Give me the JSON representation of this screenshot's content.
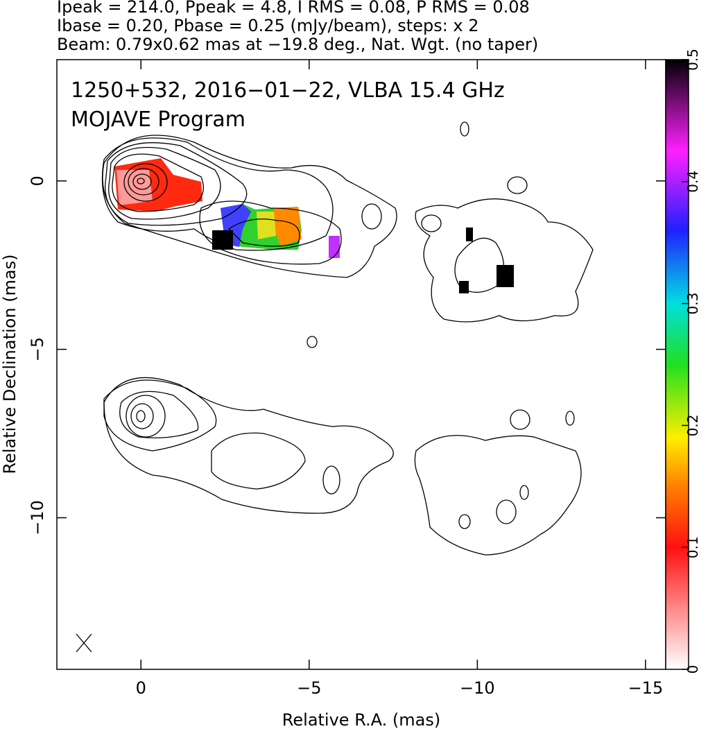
{
  "header": {
    "lines": [
      "Ipeak = 214.0, Ppeak = 4.8, I RMS = 0.08, P RMS = 0.08",
      "Ibase = 0.20, Pbase = 0.25 (mJy/beam), steps: x 2",
      "Beam: 0.79x0.62 mas at −19.8 deg., Nat. Wgt. (no taper)"
    ]
  },
  "chart_data": {
    "type": "map",
    "annotations": [
      "1250+532, 2016−01−22, VLBA 15.4 GHz",
      "MOJAVE Program"
    ],
    "x_label": "Relative R.A. (mas)",
    "y_label": "Relative Declination (mas)",
    "xlim": [
      2.5,
      -15.6
    ],
    "xticks": [
      0,
      {
        "value": -5,
        "label": "−5"
      },
      {
        "value": -10,
        "label": "−10"
      },
      {
        "value": -15,
        "label": "−15"
      }
    ],
    "ylim": [
      -14.5,
      3.6
    ],
    "yticks": [
      0,
      {
        "value": -5,
        "label": "−5"
      },
      {
        "value": -10,
        "label": "−10"
      }
    ],
    "colorbar": {
      "lim": [
        0,
        0.5
      ],
      "ticks": [
        0,
        0.1,
        0.2,
        0.3,
        0.4,
        0.5
      ]
    }
  }
}
